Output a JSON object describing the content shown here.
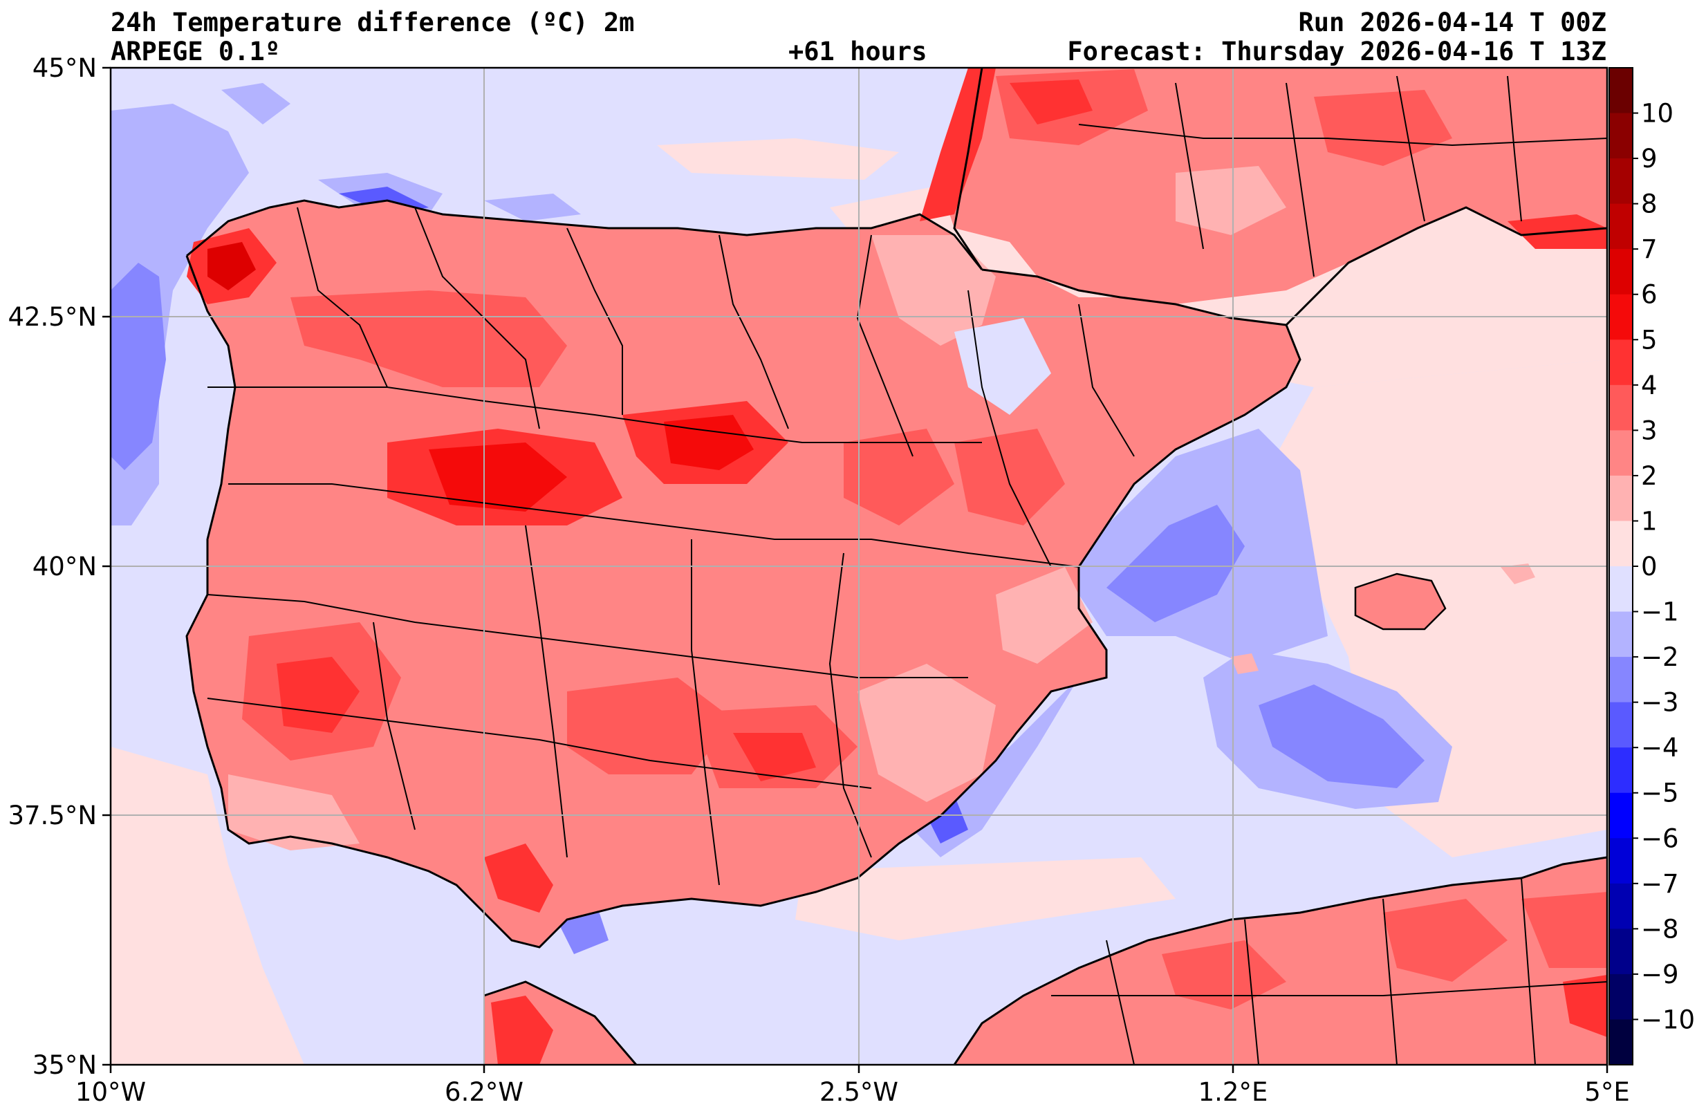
{
  "header": {
    "title": "24h Temperature difference (ºC) 2m",
    "model": "ARPEGE 0.1º",
    "lead": "+61 hours",
    "run": "Run 2026-04-14 T 00Z",
    "forecast": "Forecast: Thursday 2026-04-16 T 13Z"
  },
  "axes": {
    "lon_ticks": [
      "10°W",
      "6.2°W",
      "2.5°W",
      "1.2°E",
      "5°E"
    ],
    "lat_ticks": [
      "45°N",
      "42.5°N",
      "40°N",
      "37.5°N",
      "35°N"
    ],
    "lon_range": [
      -10,
      5
    ],
    "lat_range": [
      35,
      45
    ],
    "grid": true
  },
  "colorbar": {
    "labels": [
      "10",
      "9",
      "8",
      "7",
      "6",
      "5",
      "4",
      "3",
      "2",
      "1",
      "0",
      "−1",
      "−2",
      "−3",
      "−4",
      "−5",
      "−6",
      "−7",
      "−8",
      "−9",
      "−10"
    ],
    "colors": [
      "#6b0000",
      "#8b0000",
      "#a50000",
      "#c00000",
      "#dd0000",
      "#f50a0a",
      "#ff3232",
      "#ff5a5a",
      "#ff8585",
      "#ffb2b2",
      "#ffe0e0",
      "#e0e0ff",
      "#b3b3ff",
      "#8686ff",
      "#5a5aff",
      "#2d2dff",
      "#0000ff",
      "#0000d8",
      "#0000b2",
      "#00008b",
      "#000065",
      "#00003f"
    ]
  },
  "map": {
    "sea_colors": {
      "pink": "#ffe0e0",
      "lavender": "#e0e0ff",
      "lightblue": "#b3b3ff",
      "blue": "#8686ff"
    },
    "land_colors": {
      "light": "#ffb2b2",
      "mid": "#ff8585",
      "warm": "#ff5a5a",
      "hot": "#ff3232",
      "hotter": "#f50a0a"
    }
  }
}
